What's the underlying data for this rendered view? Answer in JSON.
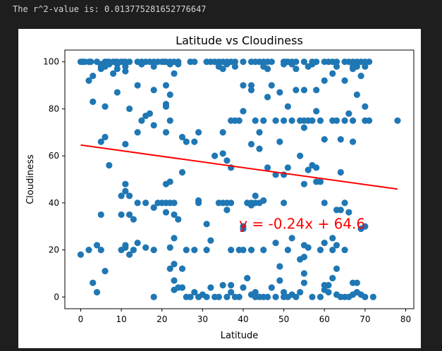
{
  "output": {
    "r2_text": "The r^2-value is: 0.013775281652776647"
  },
  "colors": {
    "background": "#1e1e1e",
    "figure": "#ffffff",
    "marker": "#1f77b4",
    "regression": "#ff0000",
    "annotation": "#ff0000",
    "text": "#000000"
  },
  "chart_data": {
    "type": "scatter",
    "title": "Latitude vs Cloudiness",
    "xlabel": "Latitude",
    "ylabel": "Cloudiness",
    "xlim": [
      -3.9,
      82
    ],
    "ylim": [
      -5,
      105
    ],
    "xticks": [
      0,
      10,
      20,
      30,
      40,
      50,
      60,
      70,
      80
    ],
    "yticks": [
      0,
      20,
      40,
      60,
      80,
      100
    ],
    "grid": false,
    "regression": {
      "slope": -0.24,
      "intercept": 64.6,
      "x_range": [
        0,
        78
      ]
    },
    "annotation": {
      "text": "y = -0.24x + 64.6",
      "x": 39,
      "y": 29
    },
    "points": [
      [
        0,
        100
      ],
      [
        0.5,
        100
      ],
      [
        1,
        100
      ],
      [
        2,
        100
      ],
      [
        2.5,
        100
      ],
      [
        4,
        100
      ],
      [
        6,
        100
      ],
      [
        6.5,
        100
      ],
      [
        7,
        100
      ],
      [
        8,
        100
      ],
      [
        8.5,
        100
      ],
      [
        9,
        100
      ],
      [
        10,
        100
      ],
      [
        10.5,
        100
      ],
      [
        11,
        100
      ],
      [
        12,
        100
      ],
      [
        14,
        100
      ],
      [
        15,
        100
      ],
      [
        16,
        100
      ],
      [
        17,
        100
      ],
      [
        18,
        100
      ],
      [
        19,
        100
      ],
      [
        20,
        100
      ],
      [
        20.5,
        100
      ],
      [
        21,
        100
      ],
      [
        22,
        100
      ],
      [
        23,
        100
      ],
      [
        24,
        100
      ],
      [
        27,
        100
      ],
      [
        28,
        100
      ],
      [
        31,
        100
      ],
      [
        32,
        100
      ],
      [
        33,
        100
      ],
      [
        34,
        100
      ],
      [
        35,
        100
      ],
      [
        36,
        100
      ],
      [
        37,
        100
      ],
      [
        38,
        100
      ],
      [
        40,
        100
      ],
      [
        42,
        100
      ],
      [
        43,
        100
      ],
      [
        44,
        100
      ],
      [
        45,
        100
      ],
      [
        46,
        100
      ],
      [
        47,
        100
      ],
      [
        50,
        100
      ],
      [
        50.5,
        100
      ],
      [
        51,
        100
      ],
      [
        52,
        100
      ],
      [
        53,
        100
      ],
      [
        55,
        100
      ],
      [
        57,
        100
      ],
      [
        58,
        100
      ],
      [
        60,
        100
      ],
      [
        61,
        100
      ],
      [
        62,
        100
      ],
      [
        63,
        100
      ],
      [
        65,
        100
      ],
      [
        66,
        100
      ],
      [
        67,
        100
      ],
      [
        68,
        100
      ],
      [
        69,
        100
      ],
      [
        70,
        100
      ],
      [
        71,
        100
      ],
      [
        5,
        99
      ],
      [
        7,
        99
      ],
      [
        9,
        99
      ],
      [
        15,
        99
      ],
      [
        22,
        99
      ],
      [
        24,
        99
      ],
      [
        36,
        99
      ],
      [
        50,
        99
      ],
      [
        52,
        99
      ],
      [
        57,
        99
      ],
      [
        5,
        98
      ],
      [
        6,
        98
      ],
      [
        11,
        98
      ],
      [
        18,
        98
      ],
      [
        34,
        98
      ],
      [
        38,
        98
      ],
      [
        45,
        98
      ],
      [
        56,
        98
      ],
      [
        63,
        98
      ],
      [
        67,
        98
      ],
      [
        68,
        98
      ],
      [
        70,
        98
      ],
      [
        5,
        97
      ],
      [
        9,
        97
      ],
      [
        35,
        97
      ],
      [
        46,
        97
      ],
      [
        53,
        97
      ],
      [
        67,
        97
      ],
      [
        8,
        95
      ],
      [
        11,
        96
      ],
      [
        23,
        95
      ],
      [
        62,
        95
      ],
      [
        69,
        94
      ],
      [
        2,
        92
      ],
      [
        14,
        90
      ],
      [
        21,
        90
      ],
      [
        40,
        90
      ],
      [
        42,
        90
      ],
      [
        47,
        90
      ],
      [
        60,
        92
      ],
      [
        65,
        92
      ],
      [
        3,
        94
      ],
      [
        3,
        83
      ],
      [
        6,
        81
      ],
      [
        9,
        87
      ],
      [
        12,
        80
      ],
      [
        18,
        88
      ],
      [
        22,
        86
      ],
      [
        21,
        82
      ],
      [
        21,
        81
      ],
      [
        42,
        88
      ],
      [
        46,
        85
      ],
      [
        49,
        87
      ],
      [
        53,
        88
      ],
      [
        55,
        88
      ],
      [
        58,
        88
      ],
      [
        68,
        86
      ],
      [
        70,
        81
      ],
      [
        15,
        75
      ],
      [
        16,
        77
      ],
      [
        17,
        78
      ],
      [
        18,
        73
      ],
      [
        21,
        70
      ],
      [
        14,
        70
      ],
      [
        22,
        75
      ],
      [
        35,
        70
      ],
      [
        37,
        75
      ],
      [
        38,
        75
      ],
      [
        39,
        75
      ],
      [
        40,
        79
      ],
      [
        43,
        75
      ],
      [
        45,
        75
      ],
      [
        48,
        75
      ],
      [
        50,
        75
      ],
      [
        52,
        75
      ],
      [
        55,
        75
      ],
      [
        57,
        75
      ],
      [
        58,
        79
      ],
      [
        59,
        75
      ],
      [
        62,
        75
      ],
      [
        63,
        75
      ],
      [
        65,
        75
      ],
      [
        66,
        78
      ],
      [
        67,
        75
      ],
      [
        70,
        75
      ],
      [
        71,
        75
      ],
      [
        78,
        75
      ],
      [
        51,
        81
      ],
      [
        54,
        75
      ],
      [
        55,
        72
      ],
      [
        56,
        75
      ],
      [
        5,
        66
      ],
      [
        6,
        68
      ],
      [
        11,
        65
      ],
      [
        25,
        68
      ],
      [
        26,
        66
      ],
      [
        28,
        66
      ],
      [
        29,
        70
      ],
      [
        33,
        60
      ],
      [
        35,
        61
      ],
      [
        36,
        58
      ],
      [
        42,
        65
      ],
      [
        44,
        70
      ],
      [
        49,
        66
      ],
      [
        54,
        60
      ],
      [
        60,
        67
      ],
      [
        64,
        67
      ],
      [
        67,
        66
      ],
      [
        7,
        56
      ],
      [
        25,
        53
      ],
      [
        37,
        55
      ],
      [
        44,
        63
      ],
      [
        46,
        55
      ],
      [
        48,
        52
      ],
      [
        50,
        52
      ],
      [
        51,
        55
      ],
      [
        55,
        48
      ],
      [
        56,
        54
      ],
      [
        57,
        56
      ],
      [
        58,
        55
      ],
      [
        58,
        49
      ],
      [
        59,
        49
      ],
      [
        64,
        53
      ],
      [
        64,
        37
      ],
      [
        10,
        43
      ],
      [
        11,
        45
      ],
      [
        11,
        48
      ],
      [
        12,
        43
      ],
      [
        14,
        40
      ],
      [
        16,
        40
      ],
      [
        18,
        38
      ],
      [
        19,
        40
      ],
      [
        20,
        40
      ],
      [
        21,
        40
      ],
      [
        21,
        48
      ],
      [
        22,
        49
      ],
      [
        22,
        40
      ],
      [
        23,
        40
      ],
      [
        23,
        35
      ],
      [
        24,
        33
      ],
      [
        29,
        41
      ],
      [
        29,
        40
      ],
      [
        31,
        31
      ],
      [
        34,
        40
      ],
      [
        35,
        40
      ],
      [
        36,
        40
      ],
      [
        36,
        37
      ],
      [
        37,
        40
      ],
      [
        40,
        30
      ],
      [
        41,
        40
      ],
      [
        42,
        39
      ],
      [
        42,
        40
      ],
      [
        43,
        40
      ],
      [
        43,
        43
      ],
      [
        44,
        40
      ],
      [
        45,
        41
      ],
      [
        50,
        40
      ],
      [
        60,
        40
      ],
      [
        63,
        37
      ],
      [
        65,
        40
      ],
      [
        66,
        36
      ],
      [
        69,
        29
      ],
      [
        70,
        30
      ],
      [
        5,
        35
      ],
      [
        10,
        35
      ],
      [
        12,
        35
      ],
      [
        13,
        33
      ],
      [
        21,
        36
      ],
      [
        23,
        25
      ],
      [
        22,
        21
      ],
      [
        23,
        14
      ],
      [
        25,
        12
      ],
      [
        26,
        20
      ],
      [
        28,
        20
      ],
      [
        31,
        20
      ],
      [
        32,
        24
      ],
      [
        37,
        20
      ],
      [
        39,
        20
      ],
      [
        40,
        20
      ],
      [
        40,
        29
      ],
      [
        42,
        20
      ],
      [
        45,
        20
      ],
      [
        48,
        23
      ],
      [
        49,
        13
      ],
      [
        51,
        20
      ],
      [
        52,
        25
      ],
      [
        55,
        22
      ],
      [
        56,
        21
      ],
      [
        55,
        17
      ],
      [
        59,
        20
      ],
      [
        60,
        23
      ],
      [
        62,
        20
      ],
      [
        62,
        25
      ],
      [
        63,
        22
      ],
      [
        63,
        12
      ],
      [
        65,
        20
      ],
      [
        10,
        20
      ],
      [
        11,
        21
      ],
      [
        12,
        18
      ],
      [
        13,
        20
      ],
      [
        14,
        23
      ],
      [
        11,
        22
      ],
      [
        16,
        21
      ],
      [
        18,
        20
      ],
      [
        22,
        12
      ],
      [
        23,
        7
      ],
      [
        5,
        20
      ],
      [
        4,
        22
      ],
      [
        2,
        20
      ],
      [
        0,
        18
      ],
      [
        3,
        6
      ],
      [
        4,
        2
      ],
      [
        6,
        11
      ],
      [
        18,
        0
      ],
      [
        23,
        3
      ],
      [
        24,
        4
      ],
      [
        25,
        4
      ],
      [
        26,
        0
      ],
      [
        27,
        0
      ],
      [
        28,
        2
      ],
      [
        29,
        0
      ],
      [
        30,
        1
      ],
      [
        31,
        0
      ],
      [
        32,
        4
      ],
      [
        33,
        0
      ],
      [
        34,
        0
      ],
      [
        35,
        5
      ],
      [
        36,
        0
      ],
      [
        37,
        5
      ],
      [
        37,
        2
      ],
      [
        38,
        0
      ],
      [
        39,
        0
      ],
      [
        40,
        4
      ],
      [
        41,
        8
      ],
      [
        42,
        1
      ],
      [
        43,
        2
      ],
      [
        43,
        0
      ],
      [
        44,
        0
      ],
      [
        45,
        0
      ],
      [
        46,
        0
      ],
      [
        47,
        4
      ],
      [
        48,
        0
      ],
      [
        49,
        7
      ],
      [
        50,
        2
      ],
      [
        50,
        0
      ],
      [
        51,
        0
      ],
      [
        52,
        1
      ],
      [
        53,
        0
      ],
      [
        54,
        2
      ],
      [
        55,
        10
      ],
      [
        55,
        6
      ],
      [
        57,
        0
      ],
      [
        59,
        0
      ],
      [
        60,
        5
      ],
      [
        60,
        3
      ],
      [
        61,
        2
      ],
      [
        61,
        5
      ],
      [
        62,
        8
      ],
      [
        63,
        1
      ],
      [
        64,
        0
      ],
      [
        65,
        0
      ],
      [
        66,
        0
      ],
      [
        67,
        1
      ],
      [
        67,
        6
      ],
      [
        68,
        2
      ],
      [
        69,
        1
      ],
      [
        70,
        0
      ],
      [
        72,
        0
      ],
      [
        68,
        6
      ],
      [
        54,
        16
      ]
    ]
  }
}
